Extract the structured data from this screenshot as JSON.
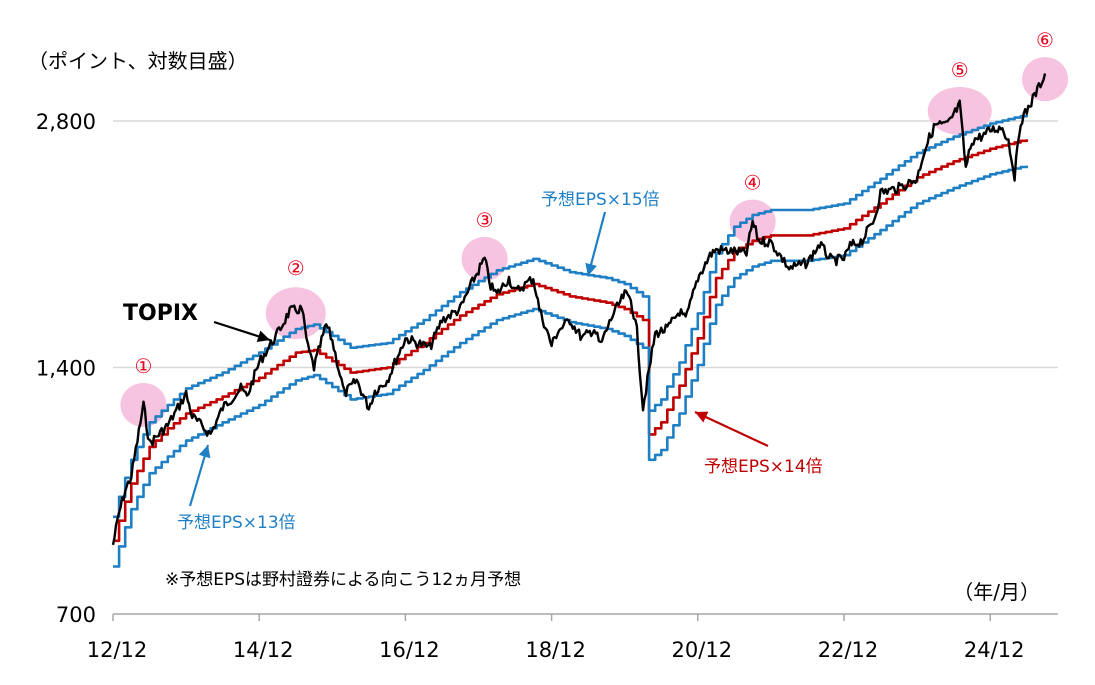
{
  "chart_data": {
    "type": "line",
    "unit_label": "（ポイント、対数目盛）",
    "x_unit_label": "（年/月）",
    "note": "※予想EPSは野村證券による向こう12ヵ月予想",
    "y_scale": "log",
    "ylim": [
      700,
      3200
    ],
    "y_ticks": [
      {
        "value": 700,
        "label": "700"
      },
      {
        "value": 1400,
        "label": "1,400"
      },
      {
        "value": 2800,
        "label": "2,800"
      }
    ],
    "xlim": [
      "2012-12",
      "2025-06"
    ],
    "x_ticks": [
      {
        "date": "2012-12",
        "label": "12/12"
      },
      {
        "date": "2014-12",
        "label": "14/12"
      },
      {
        "date": "2016-12",
        "label": "16/12"
      },
      {
        "date": "2018-12",
        "label": "18/12"
      },
      {
        "date": "2020-12",
        "label": "20/12"
      },
      {
        "date": "2022-12",
        "label": "22/12"
      },
      {
        "date": "2024-12",
        "label": "24/12"
      }
    ],
    "grid": "horizontal",
    "series": [
      {
        "name": "TOPIX",
        "color": "#000000",
        "points": [
          [
            "2012-12",
            850
          ],
          [
            "2013-01",
            930
          ],
          [
            "2013-02",
            990
          ],
          [
            "2013-03",
            1030
          ],
          [
            "2013-05",
            1260
          ],
          [
            "2013-06",
            1130
          ],
          [
            "2013-07",
            1150
          ],
          [
            "2013-09",
            1190
          ],
          [
            "2013-12",
            1300
          ],
          [
            "2014-01",
            1220
          ],
          [
            "2014-04",
            1160
          ],
          [
            "2014-06",
            1250
          ],
          [
            "2014-09",
            1320
          ],
          [
            "2014-10",
            1290
          ],
          [
            "2014-12",
            1420
          ],
          [
            "2015-03",
            1540
          ],
          [
            "2015-05",
            1640
          ],
          [
            "2015-07",
            1650
          ],
          [
            "2015-08",
            1480
          ],
          [
            "2015-09",
            1400
          ],
          [
            "2015-11",
            1580
          ],
          [
            "2015-12",
            1510
          ],
          [
            "2016-01",
            1400
          ],
          [
            "2016-02",
            1300
          ],
          [
            "2016-04",
            1350
          ],
          [
            "2016-06",
            1250
          ],
          [
            "2016-07",
            1310
          ],
          [
            "2016-09",
            1350
          ],
          [
            "2016-11",
            1460
          ],
          [
            "2016-12",
            1520
          ],
          [
            "2017-04",
            1480
          ],
          [
            "2017-06",
            1600
          ],
          [
            "2017-09",
            1650
          ],
          [
            "2017-11",
            1780
          ],
          [
            "2018-01",
            1900
          ],
          [
            "2018-02",
            1760
          ],
          [
            "2018-03",
            1720
          ],
          [
            "2018-05",
            1800
          ],
          [
            "2018-06",
            1730
          ],
          [
            "2018-09",
            1800
          ],
          [
            "2018-10",
            1650
          ],
          [
            "2018-12",
            1490
          ],
          [
            "2019-01",
            1550
          ],
          [
            "2019-03",
            1600
          ],
          [
            "2019-05",
            1520
          ],
          [
            "2019-07",
            1560
          ],
          [
            "2019-08",
            1490
          ],
          [
            "2019-10",
            1620
          ],
          [
            "2019-12",
            1720
          ],
          [
            "2020-01",
            1700
          ],
          [
            "2020-02",
            1550
          ],
          [
            "2020-03",
            1250
          ],
          [
            "2020-05",
            1540
          ],
          [
            "2020-07",
            1560
          ],
          [
            "2020-09",
            1640
          ],
          [
            "2020-10",
            1600
          ],
          [
            "2020-12",
            1800
          ],
          [
            "2021-02",
            1920
          ],
          [
            "2021-03",
            1950
          ],
          [
            "2021-06",
            1940
          ],
          [
            "2021-08",
            1930
          ],
          [
            "2021-09",
            2110
          ],
          [
            "2021-10",
            2000
          ],
          [
            "2021-12",
            1990
          ],
          [
            "2022-03",
            1850
          ],
          [
            "2022-06",
            1880
          ],
          [
            "2022-08",
            1980
          ],
          [
            "2022-10",
            1890
          ],
          [
            "2022-12",
            1900
          ],
          [
            "2023-01",
            1970
          ],
          [
            "2023-03",
            2000
          ],
          [
            "2023-05",
            2130
          ],
          [
            "2023-06",
            2290
          ],
          [
            "2023-09",
            2320
          ],
          [
            "2023-12",
            2380
          ],
          [
            "2024-01",
            2550
          ],
          [
            "2024-02",
            2670
          ],
          [
            "2024-03",
            2770
          ],
          [
            "2024-05",
            2770
          ],
          [
            "2024-07",
            2930
          ],
          [
            "2024-08",
            2450
          ],
          [
            "2024-09",
            2650
          ],
          [
            "2024-11",
            2690
          ],
          [
            "2024-12",
            2730
          ],
          [
            "2025-02",
            2750
          ],
          [
            "2025-03",
            2650
          ],
          [
            "2025-04",
            2400
          ],
          [
            "2025-05",
            2800
          ],
          [
            "2025-06",
            2880
          ],
          [
            "2025-08",
            3080
          ],
          [
            "2025-09",
            3200
          ]
        ]
      },
      {
        "name": "予想EPS×15倍",
        "color": "#1f7fc4",
        "points": [
          [
            "2012-12",
            920
          ],
          [
            "2013-03",
            1080
          ],
          [
            "2013-06",
            1200
          ],
          [
            "2013-09",
            1260
          ],
          [
            "2013-12",
            1320
          ],
          [
            "2014-06",
            1380
          ],
          [
            "2014-12",
            1460
          ],
          [
            "2015-06",
            1560
          ],
          [
            "2015-09",
            1580
          ],
          [
            "2016-03",
            1480
          ],
          [
            "2016-09",
            1500
          ],
          [
            "2017-03",
            1600
          ],
          [
            "2017-09",
            1730
          ],
          [
            "2018-03",
            1840
          ],
          [
            "2018-09",
            1900
          ],
          [
            "2019-03",
            1830
          ],
          [
            "2019-09",
            1800
          ],
          [
            "2019-12",
            1770
          ],
          [
            "2020-03",
            1710
          ],
          [
            "2020-04",
            1240
          ],
          [
            "2020-06",
            1280
          ],
          [
            "2020-09",
            1420
          ],
          [
            "2020-12",
            1630
          ],
          [
            "2021-03",
            1930
          ],
          [
            "2021-06",
            2080
          ],
          [
            "2021-09",
            2150
          ],
          [
            "2021-12",
            2180
          ],
          [
            "2022-06",
            2180
          ],
          [
            "2022-12",
            2220
          ],
          [
            "2023-06",
            2380
          ],
          [
            "2023-12",
            2560
          ],
          [
            "2024-06",
            2680
          ],
          [
            "2024-12",
            2780
          ],
          [
            "2025-06",
            2850
          ]
        ]
      },
      {
        "name": "予想EPS×14倍",
        "color": "#c00000",
        "points": [
          [
            "2012-12",
            860
          ],
          [
            "2013-03",
            1010
          ],
          [
            "2013-06",
            1120
          ],
          [
            "2013-09",
            1180
          ],
          [
            "2013-12",
            1230
          ],
          [
            "2014-06",
            1290
          ],
          [
            "2014-12",
            1360
          ],
          [
            "2015-06",
            1460
          ],
          [
            "2015-09",
            1470
          ],
          [
            "2016-03",
            1380
          ],
          [
            "2016-09",
            1400
          ],
          [
            "2017-03",
            1500
          ],
          [
            "2017-09",
            1620
          ],
          [
            "2018-03",
            1720
          ],
          [
            "2018-09",
            1770
          ],
          [
            "2019-03",
            1710
          ],
          [
            "2019-09",
            1680
          ],
          [
            "2019-12",
            1650
          ],
          [
            "2020-03",
            1600
          ],
          [
            "2020-04",
            1160
          ],
          [
            "2020-06",
            1200
          ],
          [
            "2020-09",
            1330
          ],
          [
            "2020-12",
            1520
          ],
          [
            "2021-03",
            1800
          ],
          [
            "2021-06",
            1940
          ],
          [
            "2021-09",
            2000
          ],
          [
            "2021-12",
            2030
          ],
          [
            "2022-06",
            2030
          ],
          [
            "2022-12",
            2070
          ],
          [
            "2023-06",
            2220
          ],
          [
            "2023-12",
            2390
          ],
          [
            "2024-06",
            2500
          ],
          [
            "2024-12",
            2590
          ],
          [
            "2025-06",
            2660
          ]
        ]
      },
      {
        "name": "予想EPS×13倍",
        "color": "#1f7fc4",
        "points": [
          [
            "2012-12",
            800
          ],
          [
            "2013-03",
            940
          ],
          [
            "2013-06",
            1040
          ],
          [
            "2013-09",
            1090
          ],
          [
            "2013-12",
            1140
          ],
          [
            "2014-06",
            1200
          ],
          [
            "2014-12",
            1260
          ],
          [
            "2015-06",
            1350
          ],
          [
            "2015-09",
            1370
          ],
          [
            "2016-03",
            1280
          ],
          [
            "2016-09",
            1300
          ],
          [
            "2017-03",
            1390
          ],
          [
            "2017-09",
            1500
          ],
          [
            "2018-03",
            1600
          ],
          [
            "2018-09",
            1650
          ],
          [
            "2019-03",
            1590
          ],
          [
            "2019-09",
            1560
          ],
          [
            "2019-12",
            1530
          ],
          [
            "2020-03",
            1480
          ],
          [
            "2020-04",
            1080
          ],
          [
            "2020-06",
            1110
          ],
          [
            "2020-09",
            1230
          ],
          [
            "2020-12",
            1410
          ],
          [
            "2021-03",
            1670
          ],
          [
            "2021-06",
            1800
          ],
          [
            "2021-09",
            1860
          ],
          [
            "2021-12",
            1890
          ],
          [
            "2022-06",
            1890
          ],
          [
            "2022-12",
            1920
          ],
          [
            "2023-06",
            2060
          ],
          [
            "2023-12",
            2220
          ],
          [
            "2024-06",
            2320
          ],
          [
            "2024-12",
            2410
          ],
          [
            "2025-06",
            2470
          ]
        ]
      }
    ],
    "annotations": [
      {
        "label": "TOPIX",
        "target_series": "TOPIX",
        "color": "#000000"
      },
      {
        "label": "予想EPS×15倍",
        "target_series": "予想EPS×15倍",
        "color": "#1f7fc4"
      },
      {
        "label": "予想EPS×14倍",
        "target_series": "予想EPS×14倍",
        "color": "#c00000"
      },
      {
        "label": "予想EPS×13倍",
        "target_series": "予想EPS×13倍",
        "color": "#1f7fc4"
      }
    ],
    "highlights": [
      {
        "label": "①",
        "date": "2013-05",
        "value": 1260
      },
      {
        "label": "②",
        "date": "2015-06",
        "value": 1640
      },
      {
        "label": "③",
        "date": "2018-01",
        "value": 1900
      },
      {
        "label": "④",
        "date": "2021-09",
        "value": 2110
      },
      {
        "label": "⑤",
        "date": "2024-07",
        "value": 2880
      },
      {
        "label": "⑥",
        "date": "2025-09",
        "value": 3150
      }
    ],
    "highlight_color": "#f6c3e0"
  }
}
